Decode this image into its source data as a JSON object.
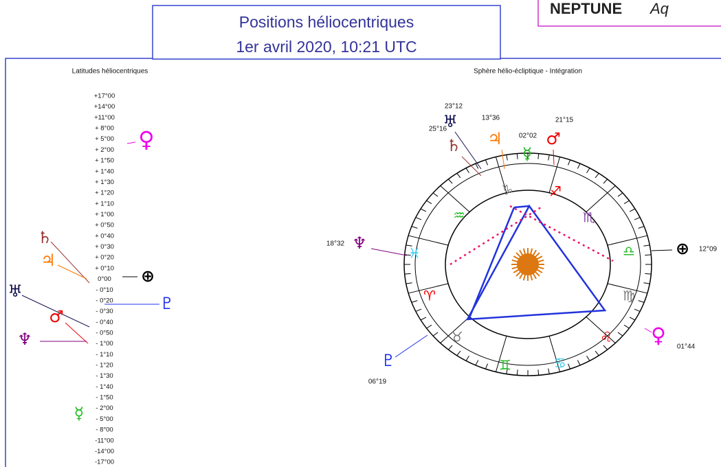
{
  "header": {
    "title": "Positions héliocentriques",
    "date": "1er avril 2020, 10:21 UTC"
  },
  "corner_box": {
    "planet": "NEPTUNE",
    "sign": "Aq"
  },
  "latitudes": {
    "title": "Latitudes héliocentriques",
    "scale": [
      "+17°00",
      "+14°00",
      "+11°00",
      "+ 8°00",
      "+ 5°00",
      "+ 2°00",
      "+ 1°50",
      "+ 1°40",
      "+ 1°30",
      "+ 1°20",
      "+ 1°10",
      "+ 1°00",
      "+ 0°50",
      "+ 0°40",
      "+ 0°30",
      "+ 0°20",
      "+ 0°10",
      "0°00",
      "- 0°10",
      "- 0°20",
      "- 0°30",
      "- 0°40",
      "- 0°50",
      "- 1°00",
      "- 1°10",
      "- 1°20",
      "- 1°30",
      "- 1°40",
      "- 1°50",
      "- 2°00",
      "- 5°00",
      "- 8°00",
      "-11°00",
      "-14°00",
      "-17°00"
    ],
    "planets": [
      "♀",
      "♄",
      "♃",
      "⊕",
      "♅",
      "♂",
      "♆",
      "♇",
      "☿"
    ]
  },
  "wheel": {
    "title": "Sphère hélio-écliptique - Intégration",
    "signs": [
      "♑",
      "♐",
      "♏",
      "♎",
      "♍",
      "♌",
      "♋",
      "♊",
      "♉",
      "♈",
      "♓",
      "♒"
    ],
    "planets": [
      {
        "glyph": "♄",
        "position": "25°16"
      },
      {
        "glyph": "♅",
        "position": "23°12"
      },
      {
        "glyph": "♃",
        "position": "13°36"
      },
      {
        "glyph": "☿",
        "position": "02°02"
      },
      {
        "glyph": "♂",
        "position": "21°15"
      },
      {
        "glyph": "♆",
        "position": "18°32"
      },
      {
        "glyph": "⊕",
        "position": "12°09"
      },
      {
        "glyph": "♀",
        "position": "01°44"
      },
      {
        "glyph": "♇",
        "position": "06°19"
      }
    ]
  }
}
